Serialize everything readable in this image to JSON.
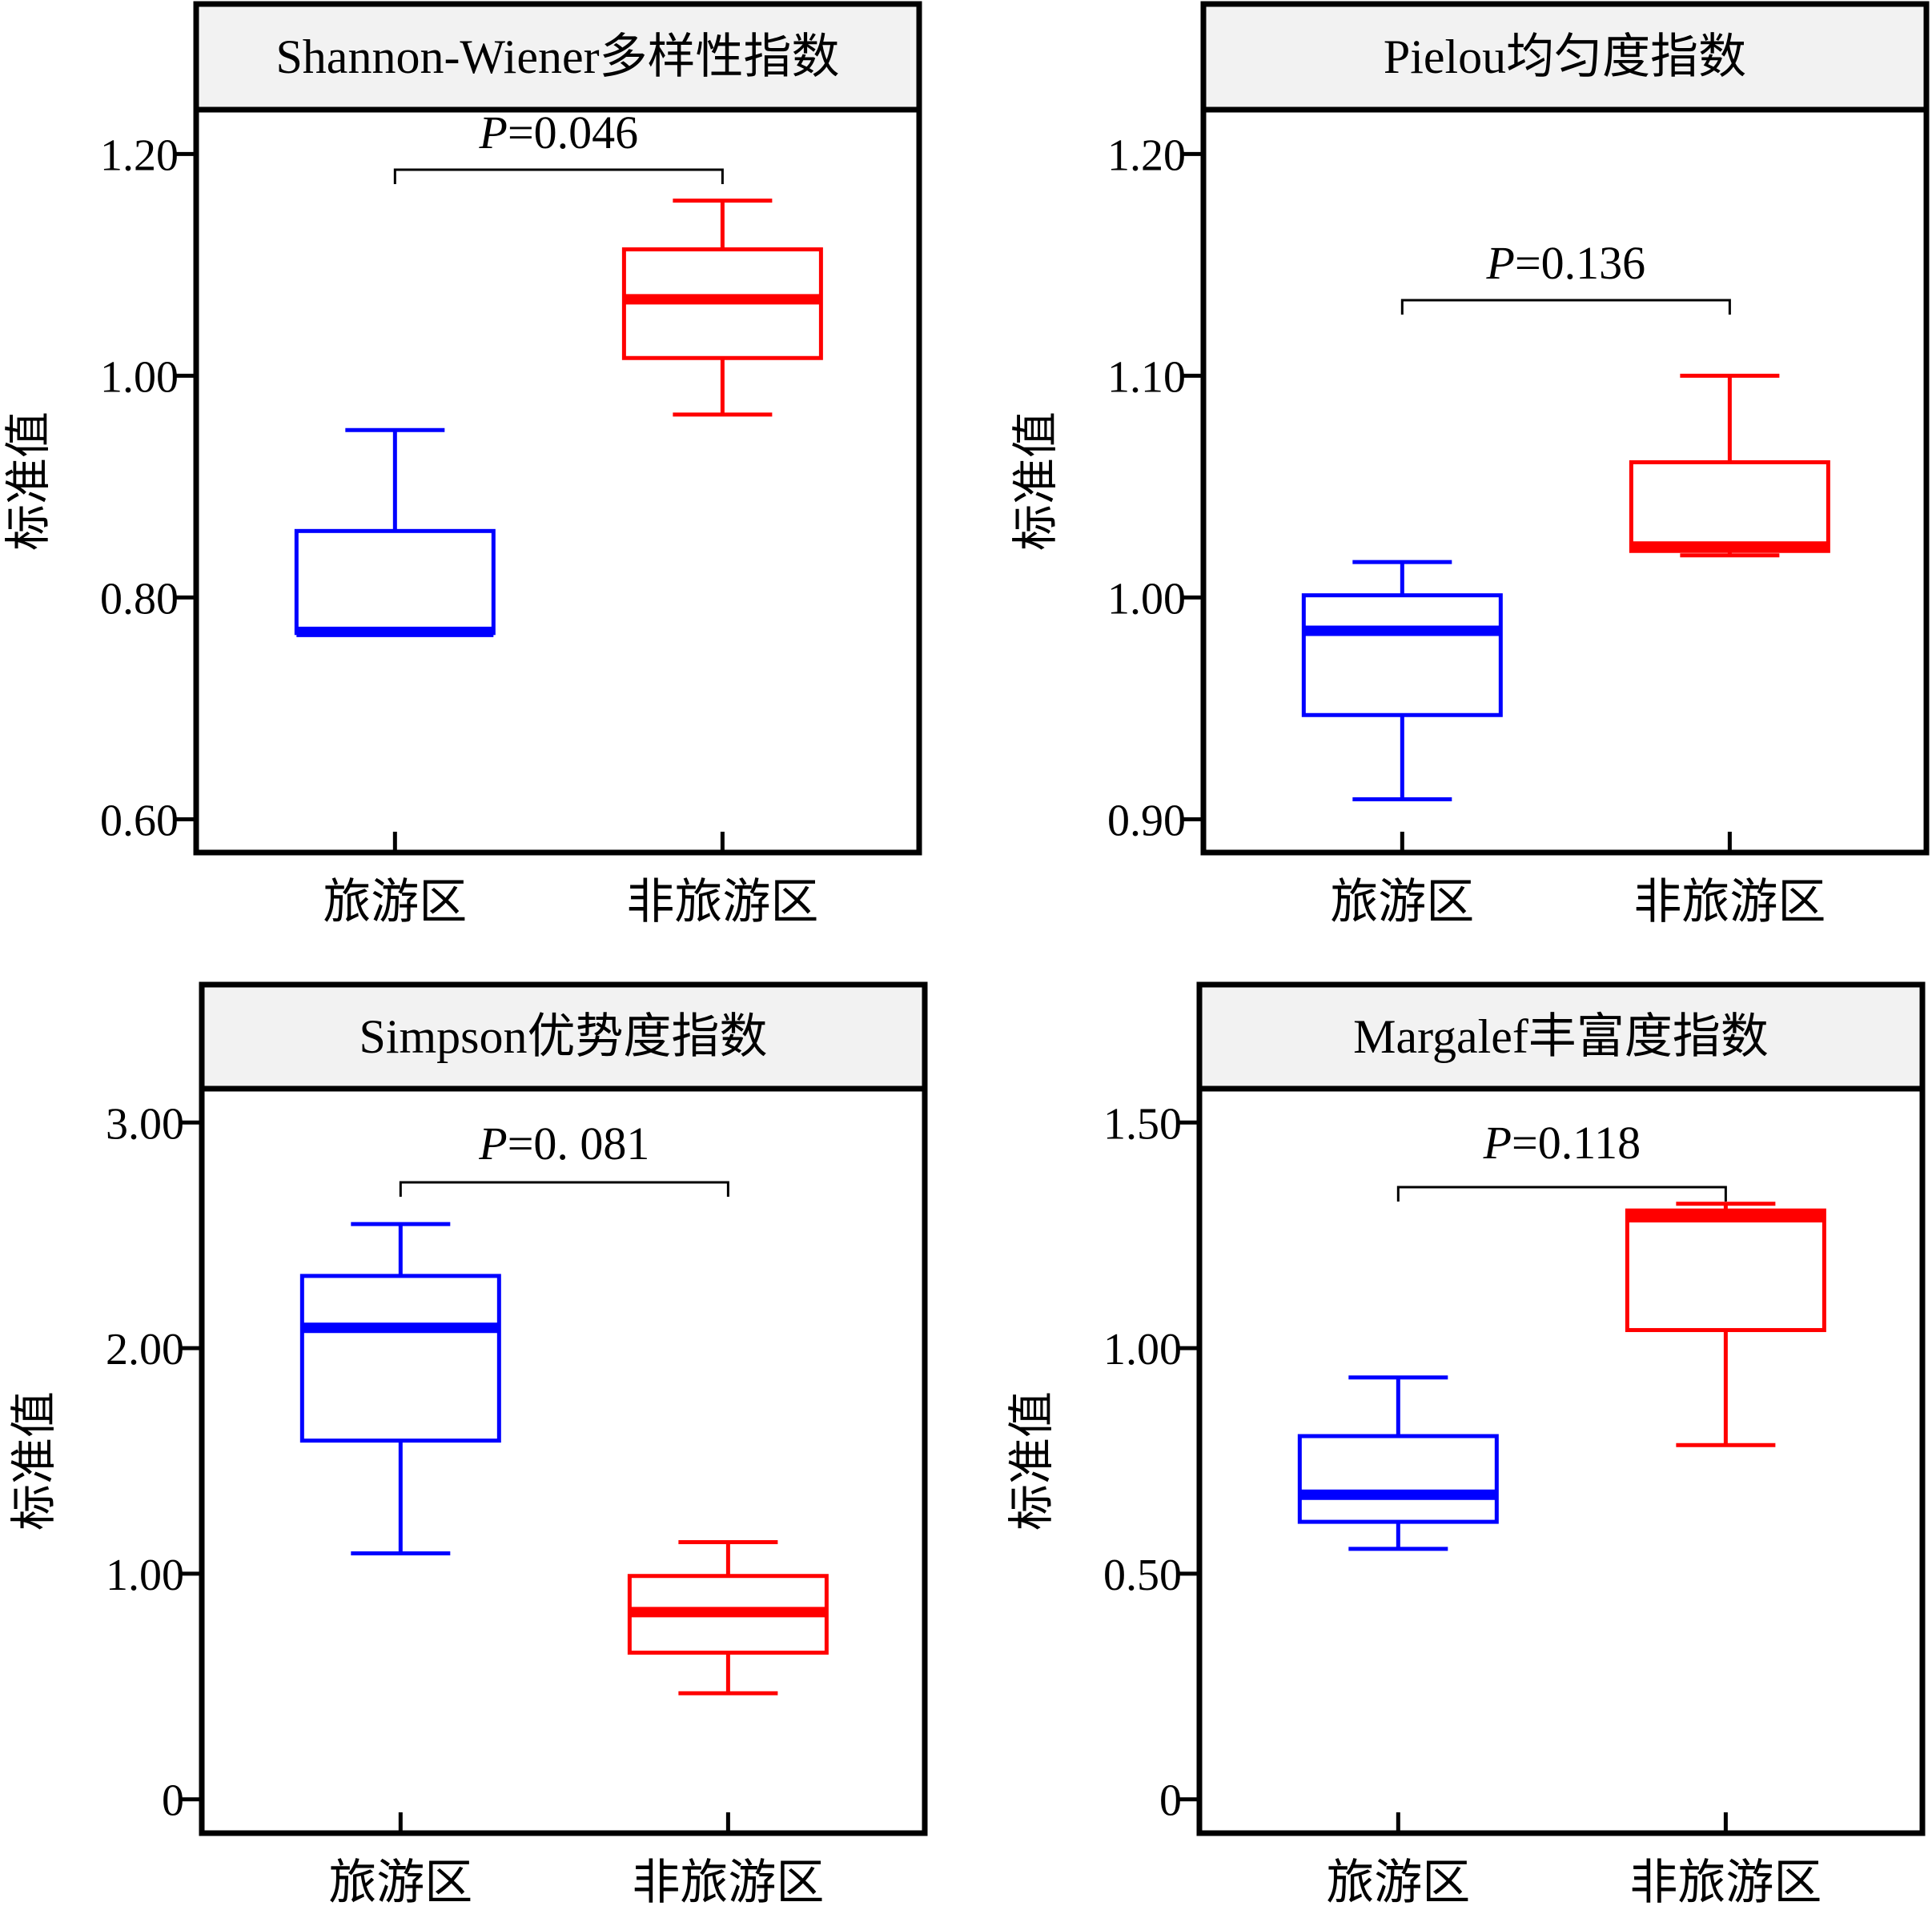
{
  "y_axis_label": "标准值",
  "chart_data": [
    {
      "type": "box",
      "title": "Shannon-Wiener多样性指数",
      "ylabel": "标准值",
      "categories": [
        "旅游区",
        "非旅游区"
      ],
      "ylim": [
        0.57,
        1.24
      ],
      "yticks": [
        0.6,
        0.8,
        1.0,
        1.2
      ],
      "ytick_labels": [
        "0.60",
        "0.80",
        "1.00",
        "1.20"
      ],
      "boxes": [
        {
          "category": "旅游区",
          "color": "#0000ff",
          "whisker_low": 0.768,
          "q1": 0.768,
          "median": 0.769,
          "q3": 0.86,
          "whisker_high": 0.951
        },
        {
          "category": "非旅游区",
          "color": "#ff0000",
          "whisker_low": 0.965,
          "q1": 1.016,
          "median": 1.069,
          "q3": 1.114,
          "whisker_high": 1.158
        }
      ],
      "significance": {
        "p_symbol": "P",
        "p_text": "=0.046"
      }
    },
    {
      "type": "box",
      "title": "Pielou均匀度指数",
      "ylabel": "标准值",
      "categories": [
        "旅游区",
        "非旅游区"
      ],
      "ylim": [
        0.885,
        1.22
      ],
      "yticks": [
        0.9,
        1.0,
        1.1,
        1.2
      ],
      "ytick_labels": [
        "0.90",
        "1.00",
        "1.10",
        "1.20"
      ],
      "boxes": [
        {
          "category": "旅游区",
          "color": "#0000ff",
          "whisker_low": 0.909,
          "q1": 0.947,
          "median": 0.985,
          "q3": 1.001,
          "whisker_high": 1.016
        },
        {
          "category": "非旅游区",
          "color": "#ff0000",
          "whisker_low": 1.019,
          "q1": 1.021,
          "median": 1.023,
          "q3": 1.061,
          "whisker_high": 1.1
        }
      ],
      "significance": {
        "p_symbol": "P",
        "p_text": "=0.136"
      }
    },
    {
      "type": "box",
      "title": "Simpson优势度指数",
      "ylabel": "标准值",
      "categories": [
        "旅游区",
        "非旅游区"
      ],
      "ylim": [
        -0.15,
        3.15
      ],
      "yticks": [
        0,
        1,
        2,
        3
      ],
      "ytick_labels": [
        "0",
        "1.00",
        "2.00",
        "3.00"
      ],
      "boxes": [
        {
          "category": "旅游区",
          "color": "#0000ff",
          "whisker_low": 1.09,
          "q1": 1.59,
          "median": 2.09,
          "q3": 2.32,
          "whisker_high": 2.55
        },
        {
          "category": "非旅游区",
          "color": "#ff0000",
          "whisker_low": 0.47,
          "q1": 0.65,
          "median": 0.83,
          "q3": 0.99,
          "whisker_high": 1.14
        }
      ],
      "significance": {
        "p_symbol": "P",
        "p_text": "=0. 081"
      }
    },
    {
      "type": "box",
      "title": "Margalef丰富度指数",
      "ylabel": "标准值",
      "categories": [
        "旅游区",
        "非旅游区"
      ],
      "ylim": [
        -0.075,
        1.575
      ],
      "yticks": [
        0,
        0.5,
        1.0,
        1.5
      ],
      "ytick_labels": [
        "0",
        "0.50",
        "1.00",
        "1.50"
      ],
      "boxes": [
        {
          "category": "旅游区",
          "color": "#0000ff",
          "whisker_low": 0.555,
          "q1": 0.615,
          "median": 0.675,
          "q3": 0.805,
          "whisker_high": 0.935
        },
        {
          "category": "非旅游区",
          "color": "#ff0000",
          "whisker_low": 0.785,
          "q1": 1.04,
          "median": 1.29,
          "q3": 1.305,
          "whisker_high": 1.32
        }
      ],
      "significance": {
        "p_symbol": "P",
        "p_text": "=0.118"
      }
    }
  ]
}
